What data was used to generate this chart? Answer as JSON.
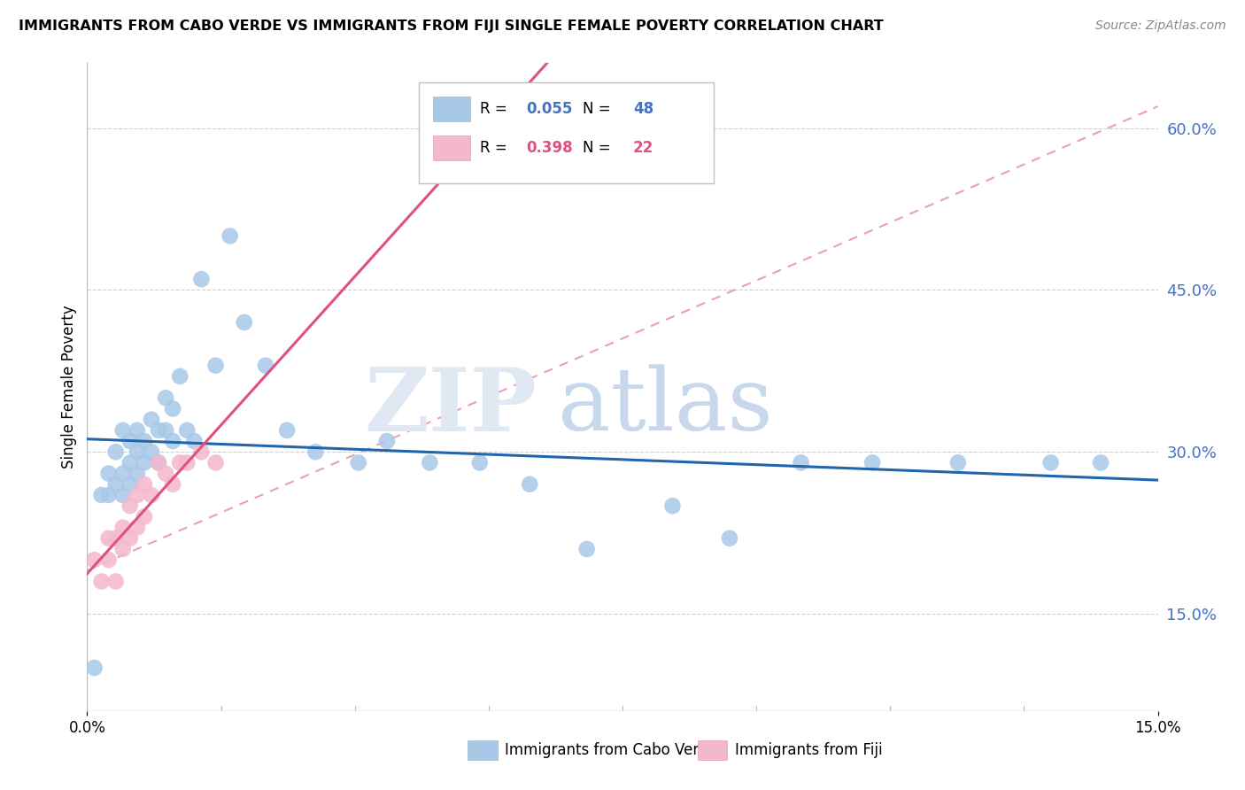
{
  "title": "IMMIGRANTS FROM CABO VERDE VS IMMIGRANTS FROM FIJI SINGLE FEMALE POVERTY CORRELATION CHART",
  "source": "Source: ZipAtlas.com",
  "ylabel": "Single Female Poverty",
  "ylabel_right_labels": [
    "15.0%",
    "30.0%",
    "45.0%",
    "60.0%"
  ],
  "ylabel_right_values": [
    0.15,
    0.3,
    0.45,
    0.6
  ],
  "xlim": [
    0.0,
    0.15
  ],
  "ylim": [
    0.06,
    0.66
  ],
  "cabo_verde_color": "#a8c8e8",
  "fiji_color": "#f4b8cc",
  "cabo_verde_line_color": "#2166ac",
  "fiji_line_color": "#e05080",
  "trend_dashed_color": "#e8b0c0",
  "cabo_verde_x": [
    0.001,
    0.002,
    0.003,
    0.003,
    0.004,
    0.004,
    0.005,
    0.005,
    0.005,
    0.006,
    0.006,
    0.006,
    0.007,
    0.007,
    0.007,
    0.008,
    0.008,
    0.009,
    0.009,
    0.01,
    0.01,
    0.011,
    0.011,
    0.012,
    0.012,
    0.013,
    0.014,
    0.015,
    0.016,
    0.018,
    0.02,
    0.022,
    0.025,
    0.028,
    0.032,
    0.038,
    0.042,
    0.048,
    0.055,
    0.062,
    0.07,
    0.082,
    0.09,
    0.1,
    0.11,
    0.122,
    0.135,
    0.142
  ],
  "cabo_verde_y": [
    0.1,
    0.26,
    0.26,
    0.28,
    0.27,
    0.3,
    0.26,
    0.28,
    0.32,
    0.27,
    0.29,
    0.31,
    0.28,
    0.3,
    0.32,
    0.29,
    0.31,
    0.3,
    0.33,
    0.29,
    0.32,
    0.32,
    0.35,
    0.31,
    0.34,
    0.37,
    0.32,
    0.31,
    0.46,
    0.38,
    0.5,
    0.42,
    0.38,
    0.32,
    0.3,
    0.29,
    0.31,
    0.29,
    0.29,
    0.27,
    0.21,
    0.25,
    0.22,
    0.29,
    0.29,
    0.29,
    0.29,
    0.29
  ],
  "fiji_x": [
    0.001,
    0.002,
    0.003,
    0.003,
    0.004,
    0.004,
    0.005,
    0.005,
    0.006,
    0.006,
    0.007,
    0.007,
    0.008,
    0.008,
    0.009,
    0.01,
    0.011,
    0.012,
    0.013,
    0.014,
    0.016,
    0.018
  ],
  "fiji_y": [
    0.2,
    0.18,
    0.2,
    0.22,
    0.18,
    0.22,
    0.21,
    0.23,
    0.22,
    0.25,
    0.23,
    0.26,
    0.24,
    0.27,
    0.26,
    0.29,
    0.28,
    0.27,
    0.29,
    0.29,
    0.3,
    0.29
  ]
}
